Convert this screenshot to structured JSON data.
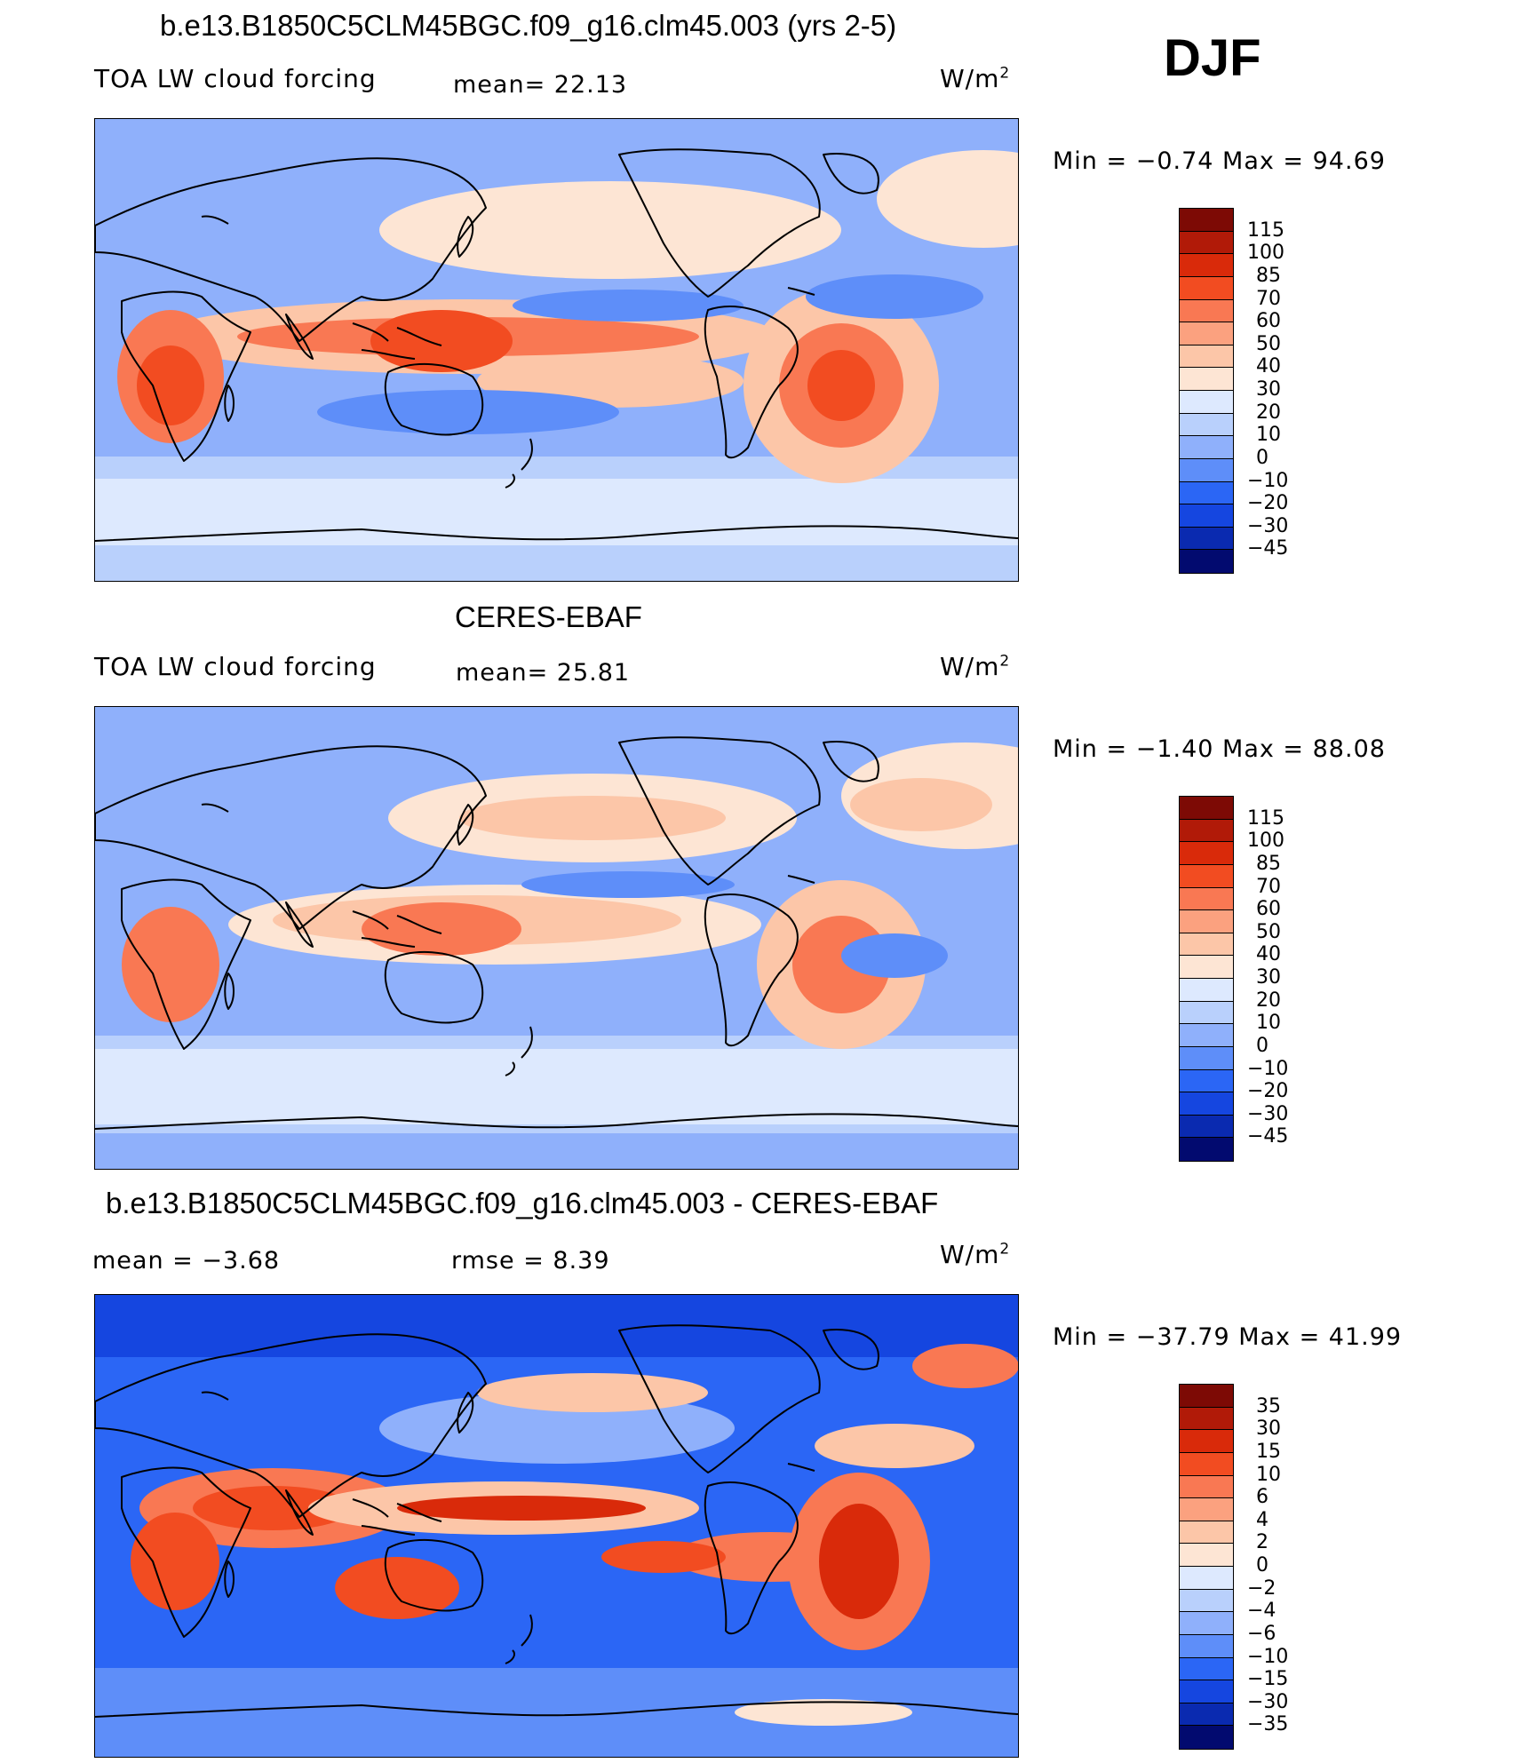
{
  "season": "DJF",
  "colors": {
    "model": [
      "#020a6f",
      "#0a2ab0",
      "#1546e0",
      "#2b66f5",
      "#5e8ef9",
      "#8fb0fb",
      "#b9d0fc",
      "#dde9fe",
      "#fde5d4",
      "#fcc6a8",
      "#fba17f",
      "#f97853",
      "#f24c21",
      "#d92a0a",
      "#b11a08",
      "#7d0a05"
    ],
    "diff": [
      "#020a6f",
      "#0a2ab0",
      "#1546e0",
      "#2b66f5",
      "#5e8ef9",
      "#8fb0fb",
      "#b9d0fc",
      "#dde9fe",
      "#fde5d4",
      "#fcc6a8",
      "#fba17f",
      "#f97853",
      "#f24c21",
      "#d92a0a",
      "#b11a08",
      "#7d0a05"
    ]
  },
  "panels": [
    {
      "title": "b.e13.B1850C5CLM45BGC.f09_g16.clm45.003 (yrs 2-5)",
      "variable": "TOA LW cloud forcing",
      "stat_text": "mean=   22.13",
      "units": "W/m",
      "units_sup": "2",
      "min_max": "Min  =    −0.74  Max  =    94.69",
      "ticks": [
        "115",
        "100",
        "85",
        "70",
        "60",
        "50",
        "40",
        "30",
        "20",
        "10",
        "0",
        "−10",
        "−20",
        "−30",
        "−45"
      ]
    },
    {
      "title": "CERES-EBAF",
      "variable": "TOA LW cloud forcing",
      "stat_text": "mean=   25.81",
      "units": "W/m",
      "units_sup": "2",
      "min_max": "Min  =    −1.40  Max  =    88.08",
      "ticks": [
        "115",
        "100",
        "85",
        "70",
        "60",
        "50",
        "40",
        "30",
        "20",
        "10",
        "0",
        "−10",
        "−20",
        "−30",
        "−45"
      ]
    },
    {
      "title": "b.e13.B1850C5CLM45BGC.f09_g16.clm45.003 - CERES-EBAF",
      "mean_text": "mean  =    −3.68",
      "rmse_text": "rmse  =     8.39",
      "units": "W/m",
      "units_sup": "2",
      "min_max": "Min  = −37.79  Max  =    41.99",
      "ticks": [
        "35",
        "30",
        "15",
        "10",
        "6",
        "4",
        "2",
        "0",
        "−2",
        "−4",
        "−6",
        "−10",
        "−15",
        "−30",
        "−35"
      ]
    }
  ]
}
